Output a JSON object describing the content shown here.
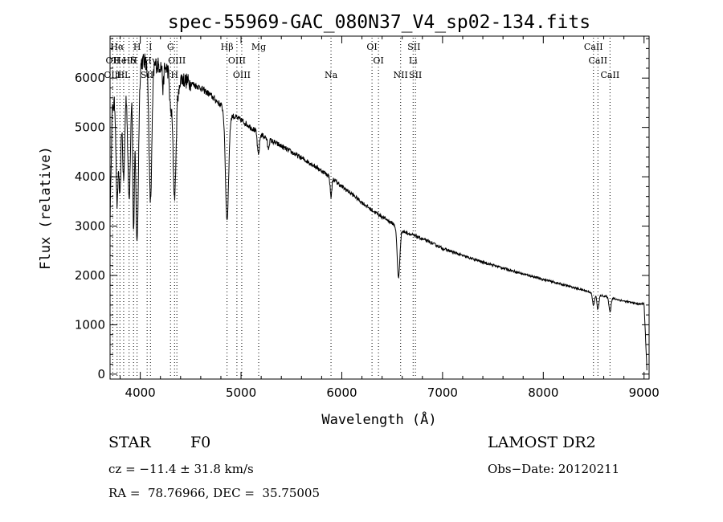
{
  "chart_data": {
    "type": "line",
    "title": "spec-55969-GAC_080N37_V4_sp02-134.fits",
    "xlabel": "Wavelength (Å)",
    "ylabel": "Flux (relative)",
    "xlim": [
      3700,
      9050
    ],
    "ylim": [
      -100,
      6850
    ],
    "x_ticks": [
      4000,
      5000,
      6000,
      7000,
      8000,
      9000
    ],
    "y_ticks": [
      0,
      1000,
      2000,
      3000,
      4000,
      5000,
      6000
    ],
    "grid": false,
    "continuum": [
      [
        3700,
        3100
      ],
      [
        3720,
        5300
      ],
      [
        3750,
        5600
      ],
      [
        3800,
        5950
      ],
      [
        3850,
        6100
      ],
      [
        3900,
        6200
      ],
      [
        4000,
        6350
      ],
      [
        4100,
        6300
      ],
      [
        4200,
        6250
      ],
      [
        4300,
        6150
      ],
      [
        4400,
        6000
      ],
      [
        4500,
        5900
      ],
      [
        4600,
        5800
      ],
      [
        4700,
        5650
      ],
      [
        4800,
        5450
      ],
      [
        4900,
        5250
      ],
      [
        5000,
        5150
      ],
      [
        5100,
        5000
      ],
      [
        5200,
        4850
      ],
      [
        5300,
        4730
      ],
      [
        5400,
        4620
      ],
      [
        5500,
        4500
      ],
      [
        5600,
        4380
      ],
      [
        5700,
        4260
      ],
      [
        5800,
        4120
      ],
      [
        5900,
        3980
      ],
      [
        6000,
        3800
      ],
      [
        6100,
        3650
      ],
      [
        6200,
        3480
      ],
      [
        6300,
        3320
      ],
      [
        6400,
        3190
      ],
      [
        6500,
        3060
      ],
      [
        6600,
        2900
      ],
      [
        6700,
        2820
      ],
      [
        6800,
        2740
      ],
      [
        6900,
        2650
      ],
      [
        7000,
        2550
      ],
      [
        7200,
        2400
      ],
      [
        7400,
        2270
      ],
      [
        7600,
        2150
      ],
      [
        7800,
        2030
      ],
      [
        8000,
        1920
      ],
      [
        8200,
        1810
      ],
      [
        8400,
        1700
      ],
      [
        8600,
        1580
      ],
      [
        8800,
        1480
      ],
      [
        8950,
        1420
      ],
      [
        9000,
        1430
      ],
      [
        9030,
        0
      ]
    ],
    "absorption_features": [
      {
        "center": 3770,
        "depth": 2300,
        "width": 10
      },
      {
        "center": 3798,
        "depth": 2300,
        "width": 10
      },
      {
        "center": 3835,
        "depth": 2100,
        "width": 12
      },
      {
        "center": 3889,
        "depth": 2600,
        "width": 14
      },
      {
        "center": 3933,
        "depth": 3200,
        "width": 8
      },
      {
        "center": 3968,
        "depth": 3600,
        "width": 14
      },
      {
        "center": 4101,
        "depth": 2800,
        "width": 14
      },
      {
        "center": 4226,
        "depth": 450,
        "width": 6
      },
      {
        "center": 4300,
        "depth": 700,
        "width": 10
      },
      {
        "center": 4340,
        "depth": 2500,
        "width": 16
      },
      {
        "center": 4383,
        "depth": 300,
        "width": 6
      },
      {
        "center": 4861,
        "depth": 2200,
        "width": 16
      },
      {
        "center": 5172,
        "depth": 450,
        "width": 10
      },
      {
        "center": 5270,
        "depth": 200,
        "width": 8
      },
      {
        "center": 5893,
        "depth": 400,
        "width": 8
      },
      {
        "center": 6563,
        "depth": 1000,
        "width": 13
      },
      {
        "center": 8498,
        "depth": 250,
        "width": 10
      },
      {
        "center": 8542,
        "depth": 300,
        "width": 10
      },
      {
        "center": 8662,
        "depth": 280,
        "width": 10
      }
    ],
    "noise_amplitude": 70,
    "line_markers": [
      {
        "label": "Hα",
        "wavelength": 3770,
        "row": 1
      },
      {
        "label": "OII",
        "wavelength": 3727,
        "row": 2
      },
      {
        "label": "OIII",
        "wavelength": 3727,
        "row": 3
      },
      {
        "label": "He",
        "wavelength": 3798,
        "row": 2
      },
      {
        "label": "HL",
        "wavelength": 3835,
        "row": 3
      },
      {
        "label": "Hδ",
        "wavelength": 3889,
        "row": 2
      },
      {
        "label": "H",
        "wavelength": 3968,
        "row": 1
      },
      {
        "label": "H",
        "wavelength": 3933,
        "row": 2
      },
      {
        "label": "SII",
        "wavelength": 4068,
        "row": 3
      },
      {
        "label": "I",
        "wavelength": 4101,
        "row": 1
      },
      {
        "label": "Hγ",
        "wavelength": 4101,
        "row": 2
      },
      {
        "label": "G",
        "wavelength": 4300,
        "row": 1
      },
      {
        "label": "OIII",
        "wavelength": 4363,
        "row": 2
      },
      {
        "label": "H",
        "wavelength": 4340,
        "row": 3
      },
      {
        "label": "Hβ",
        "wavelength": 4861,
        "row": 1
      },
      {
        "label": "OIII",
        "wavelength": 4959,
        "row": 2
      },
      {
        "label": "OIII",
        "wavelength": 5007,
        "row": 3
      },
      {
        "label": "Mg",
        "wavelength": 5175,
        "row": 1
      },
      {
        "label": "Na",
        "wavelength": 5893,
        "row": 3
      },
      {
        "label": "OI",
        "wavelength": 6300,
        "row": 1
      },
      {
        "label": "OI",
        "wavelength": 6364,
        "row": 2
      },
      {
        "label": "SII",
        "wavelength": 6717,
        "row": 1
      },
      {
        "label": "Li",
        "wavelength": 6708,
        "row": 2
      },
      {
        "label": "NII",
        "wavelength": 6584,
        "row": 3
      },
      {
        "label": "SII",
        "wavelength": 6731,
        "row": 3
      },
      {
        "label": "CaII",
        "wavelength": 8498,
        "row": 1
      },
      {
        "label": "CaII",
        "wavelength": 8542,
        "row": 2
      },
      {
        "label": "CaII",
        "wavelength": 8662,
        "row": 3
      }
    ],
    "marker_lines": [
      3727,
      3770,
      3798,
      3835,
      3889,
      3933,
      3968,
      4068,
      4101,
      4300,
      4340,
      4363,
      4861,
      4959,
      5007,
      5175,
      5893,
      6300,
      6364,
      6584,
      6708,
      6731,
      8498,
      8542,
      8662
    ]
  },
  "info": {
    "object_class": "STAR",
    "subclass": "F0",
    "survey": "LAMOST DR2",
    "redshift": "cz = −11.4 ± 31.8 km/s",
    "obs_date": "Obs−Date: 20120211",
    "coords": "RA =  78.76966, DEC =  35.75005"
  }
}
